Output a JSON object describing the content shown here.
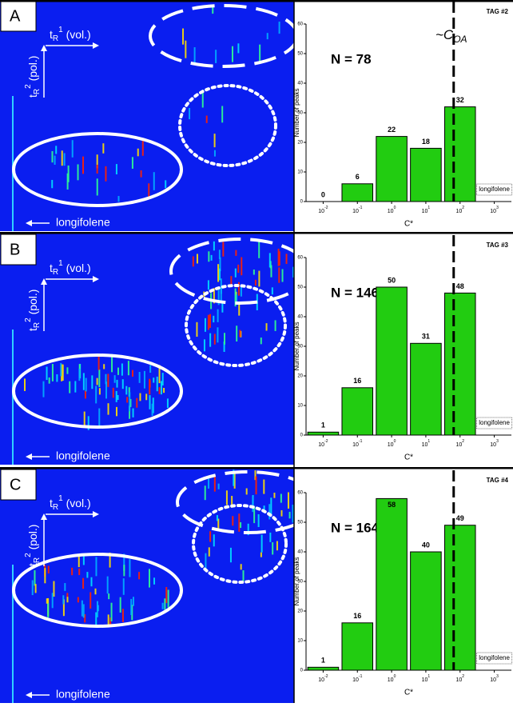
{
  "panels": [
    {
      "label": "A",
      "x_axis_label": {
        "t": "t",
        "sub": "R",
        "sup": "1",
        "rest": " (vol.)"
      },
      "y_axis_label": {
        "t": "t",
        "sub": "R",
        "sup": "2",
        "rest": " (pol.)"
      },
      "marker": "longifolene"
    },
    {
      "label": "B",
      "x_axis_label": {
        "t": "t",
        "sub": "R",
        "sup": "1",
        "rest": " (vol.)"
      },
      "y_axis_label": {
        "t": "t",
        "sub": "R",
        "sup": "2",
        "rest": " (pol.)"
      },
      "marker": "longifolene"
    },
    {
      "label": "C",
      "x_axis_label": {
        "t": "t",
        "sub": "R",
        "sup": "1",
        "rest": " (vol.)"
      },
      "y_axis_label": {
        "t": "t",
        "sub": "R",
        "sup": "2",
        "rest": " (pol.)"
      },
      "marker": "longifolene"
    }
  ],
  "chart_data": [
    {
      "type": "bar",
      "title": "TAG #2",
      "annotation": "N = 78",
      "volatility_label": {
        "main": "~C",
        "sub": "OA"
      },
      "categories": [
        {
          "base": "10",
          "exp": "-2"
        },
        {
          "base": "10",
          "exp": "-1"
        },
        {
          "base": "10",
          "exp": "0"
        },
        {
          "base": "10",
          "exp": "1"
        },
        {
          "base": "10",
          "exp": "2"
        },
        {
          "base": "10",
          "exp": "3"
        }
      ],
      "values": [
        0,
        6,
        22,
        18,
        32,
        null
      ],
      "color": "#22cc11",
      "ylim": [
        0,
        60
      ],
      "yticks": [
        0,
        10,
        20,
        30,
        40,
        50,
        60
      ],
      "ylabel": "Number of peaks",
      "xlabel": "C*",
      "legend_box": "longifolene"
    },
    {
      "type": "bar",
      "title": "TAG #3",
      "annotation": "N = 146",
      "categories": [
        {
          "base": "10",
          "exp": "-2"
        },
        {
          "base": "10",
          "exp": "-1"
        },
        {
          "base": "10",
          "exp": "0"
        },
        {
          "base": "10",
          "exp": "1"
        },
        {
          "base": "10",
          "exp": "2"
        },
        {
          "base": "10",
          "exp": "3"
        }
      ],
      "values": [
        1,
        16,
        50,
        31,
        48,
        null
      ],
      "color": "#22cc11",
      "ylim": [
        0,
        60
      ],
      "yticks": [
        0,
        10,
        20,
        30,
        40,
        50,
        60
      ],
      "ylabel": "Number of peaks",
      "xlabel": "C*",
      "legend_box": "longifolene"
    },
    {
      "type": "bar",
      "title": "TAG #4",
      "annotation": "N = 164",
      "categories": [
        {
          "base": "10",
          "exp": "-2"
        },
        {
          "base": "10",
          "exp": "-1"
        },
        {
          "base": "10",
          "exp": "0"
        },
        {
          "base": "10",
          "exp": "1"
        },
        {
          "base": "10",
          "exp": "2"
        },
        {
          "base": "10",
          "exp": "3"
        }
      ],
      "values": [
        1,
        16,
        58,
        40,
        49,
        null
      ],
      "color": "#22cc11",
      "ylim": [
        0,
        60
      ],
      "yticks": [
        0,
        10,
        20,
        30,
        40,
        50,
        60
      ],
      "ylabel": "Number of peaks",
      "xlabel": "C*",
      "legend_box": "longifolene"
    }
  ]
}
